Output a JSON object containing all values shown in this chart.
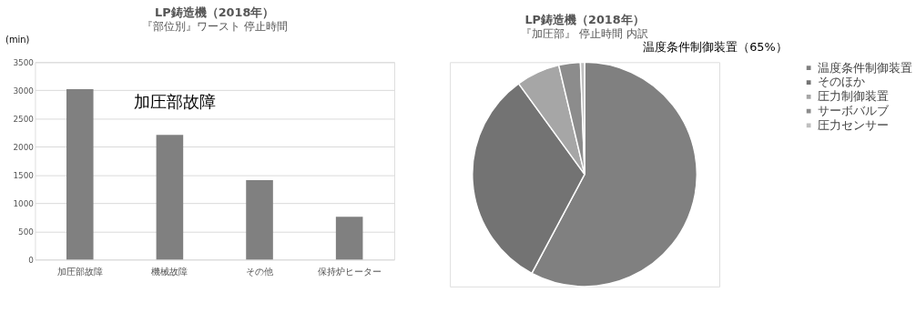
{
  "chart_data": [
    {
      "type": "bar",
      "title": "LP鋳造機（2018年）",
      "subtitle": "『部位別』ワースト  停止時間",
      "ylabel": "(min)",
      "categories": [
        "加圧部故障",
        "機械故障",
        "その他",
        "保持炉ヒーター"
      ],
      "values": [
        3020,
        2210,
        1410,
        760
      ],
      "color": "#808080",
      "ylim": [
        0,
        3500
      ],
      "yticks": [
        0,
        500,
        1000,
        1500,
        2000,
        2500,
        3000,
        3500
      ],
      "grid": "y",
      "annotations": [
        "加圧部故障"
      ]
    },
    {
      "type": "pie",
      "title": "LP鋳造機（2018年）",
      "subtitle": "『加圧部』 停止時間 内訳",
      "categories": [
        "温度条件制御装置",
        "そのほか",
        "圧力制御装置",
        "サーボバルブ",
        "圧力センサー"
      ],
      "values": [
        57.8,
        32.2,
        6.3,
        3.1,
        0.6
      ],
      "colors": [
        "#808080",
        "#737373",
        "#a6a6a6",
        "#8c8c8c",
        "#bfbfbf"
      ],
      "legend": "right",
      "annotations": [
        "温度条件制御装置（65%）"
      ]
    }
  ]
}
